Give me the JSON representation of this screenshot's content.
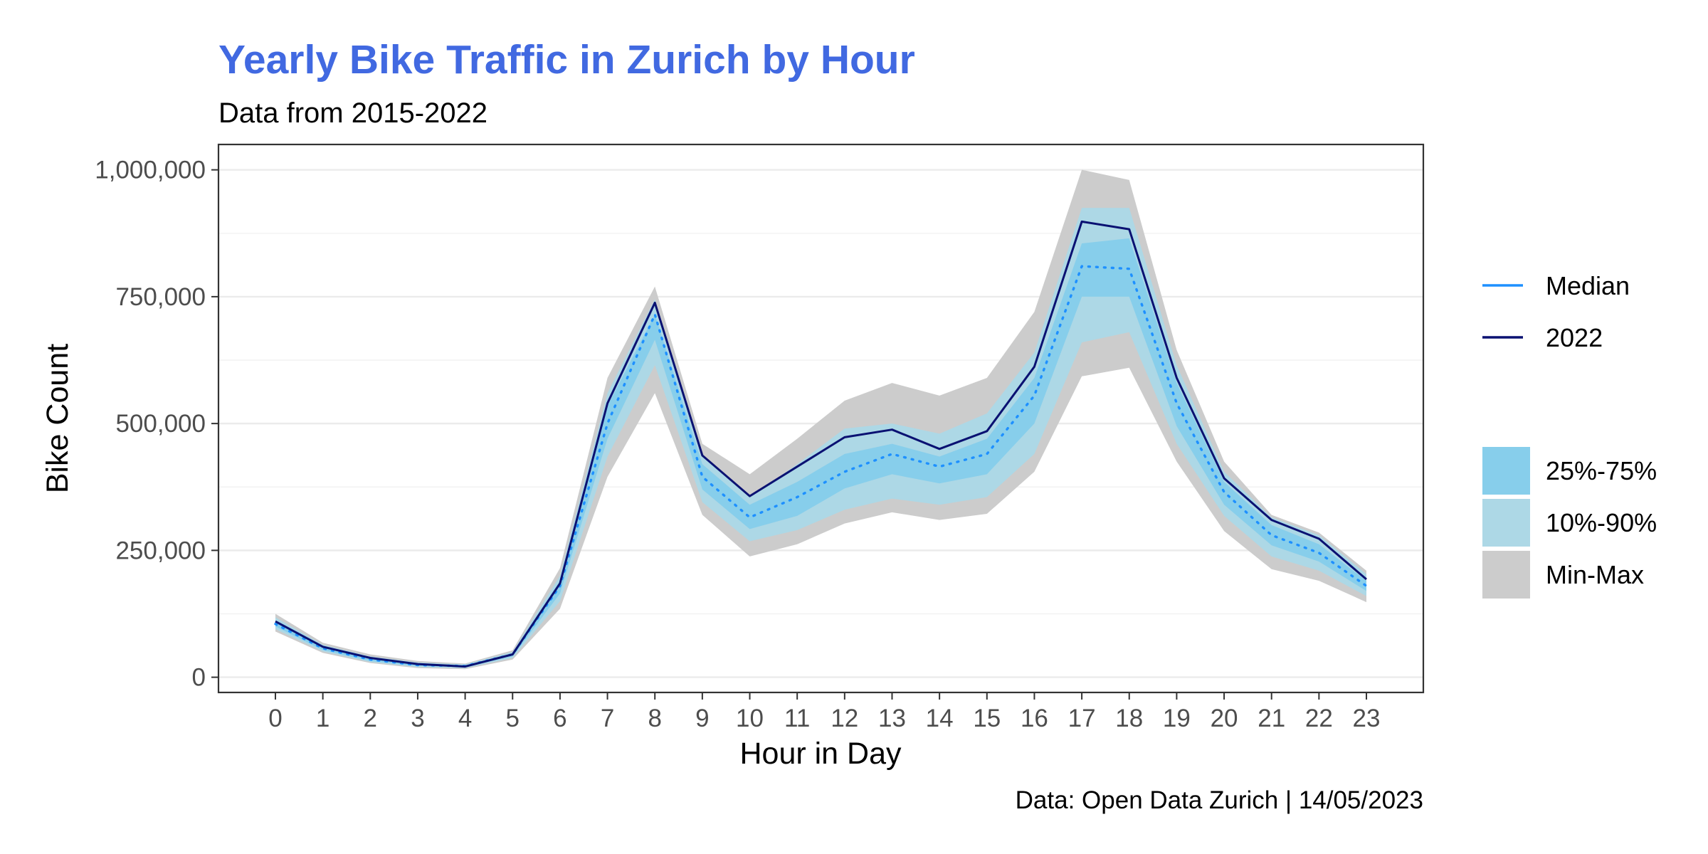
{
  "chart_data": {
    "type": "area",
    "title": "Yearly Bike Traffic in Zurich by Hour",
    "subtitle": "Data from 2015-2022",
    "caption": "Data: Open Data Zurich | 14/05/2023",
    "xlabel": "Hour in Day",
    "ylabel": "Bike Count",
    "x": [
      0,
      1,
      2,
      3,
      4,
      5,
      6,
      7,
      8,
      9,
      10,
      11,
      12,
      13,
      14,
      15,
      16,
      17,
      18,
      19,
      20,
      21,
      22,
      23
    ],
    "x_tick_labels": [
      "0",
      "1",
      "2",
      "3",
      "4",
      "5",
      "6",
      "7",
      "8",
      "9",
      "10",
      "11",
      "12",
      "13",
      "14",
      "15",
      "16",
      "17",
      "18",
      "19",
      "20",
      "21",
      "22",
      "23"
    ],
    "ylim": [
      -30000,
      1050000
    ],
    "y_ticks": [
      0,
      250000,
      500000,
      750000,
      1000000
    ],
    "y_tick_labels": [
      "0",
      "250,000",
      "500,000",
      "750,000",
      "1,000,000"
    ],
    "grid": true,
    "legend_position": "right",
    "series": [
      {
        "name": "Median",
        "style": "dotted",
        "color": "#1E90FF",
        "values": [
          105000,
          57000,
          35000,
          24000,
          22000,
          45000,
          180000,
          500000,
          715000,
          395000,
          315000,
          355000,
          405000,
          440000,
          415000,
          440000,
          555000,
          810000,
          805000,
          540000,
          365000,
          280000,
          245000,
          180000
        ]
      },
      {
        "name": "2022",
        "style": "solid",
        "color": "#0A1172",
        "values": [
          110000,
          60000,
          38000,
          26000,
          21000,
          45000,
          185000,
          540000,
          738000,
          437000,
          357000,
          415000,
          473000,
          488000,
          450000,
          485000,
          612000,
          898000,
          883000,
          590000,
          392000,
          310000,
          273000,
          193000
        ]
      }
    ],
    "bands": [
      {
        "name": "Min-Max",
        "color": "#CCCCCC",
        "lower": [
          90000,
          48000,
          28000,
          18000,
          16000,
          35000,
          135000,
          395000,
          560000,
          320000,
          238000,
          262000,
          303000,
          325000,
          310000,
          322000,
          405000,
          593000,
          610000,
          425000,
          288000,
          213000,
          190000,
          148000
        ],
        "upper": [
          125000,
          68000,
          45000,
          32000,
          27000,
          53000,
          215000,
          590000,
          770000,
          460000,
          400000,
          470000,
          545000,
          580000,
          555000,
          590000,
          720000,
          1000000,
          980000,
          645000,
          425000,
          320000,
          285000,
          210000
        ]
      },
      {
        "name": "10%-90%",
        "color": "#ADD8E6",
        "lower": [
          95000,
          51000,
          30000,
          20000,
          18000,
          38000,
          150000,
          435000,
          615000,
          345000,
          268000,
          290000,
          330000,
          352000,
          340000,
          355000,
          440000,
          660000,
          680000,
          460000,
          318000,
          238000,
          210000,
          160000
        ],
        "upper": [
          118000,
          64000,
          41000,
          29000,
          25000,
          50000,
          200000,
          560000,
          745000,
          440000,
          355000,
          420000,
          490000,
          500000,
          480000,
          520000,
          640000,
          925000,
          925000,
          615000,
          405000,
          315000,
          280000,
          203000
        ]
      },
      {
        "name": "25%-75%",
        "color": "#87CEEB",
        "lower": [
          100000,
          54000,
          32000,
          22000,
          20000,
          41000,
          165000,
          470000,
          665000,
          370000,
          292000,
          318000,
          372000,
          400000,
          382000,
          400000,
          500000,
          750000,
          750000,
          495000,
          340000,
          260000,
          228000,
          170000
        ],
        "upper": [
          112000,
          61000,
          38000,
          27000,
          24000,
          47000,
          190000,
          535000,
          715000,
          420000,
          340000,
          385000,
          440000,
          460000,
          435000,
          470000,
          590000,
          855000,
          865000,
          580000,
          385000,
          300000,
          262000,
          190000
        ]
      }
    ],
    "legend_lines": [
      "Median",
      "2022"
    ],
    "legend_bands": [
      "25%-75%",
      "10%-90%",
      "Min-Max"
    ]
  }
}
